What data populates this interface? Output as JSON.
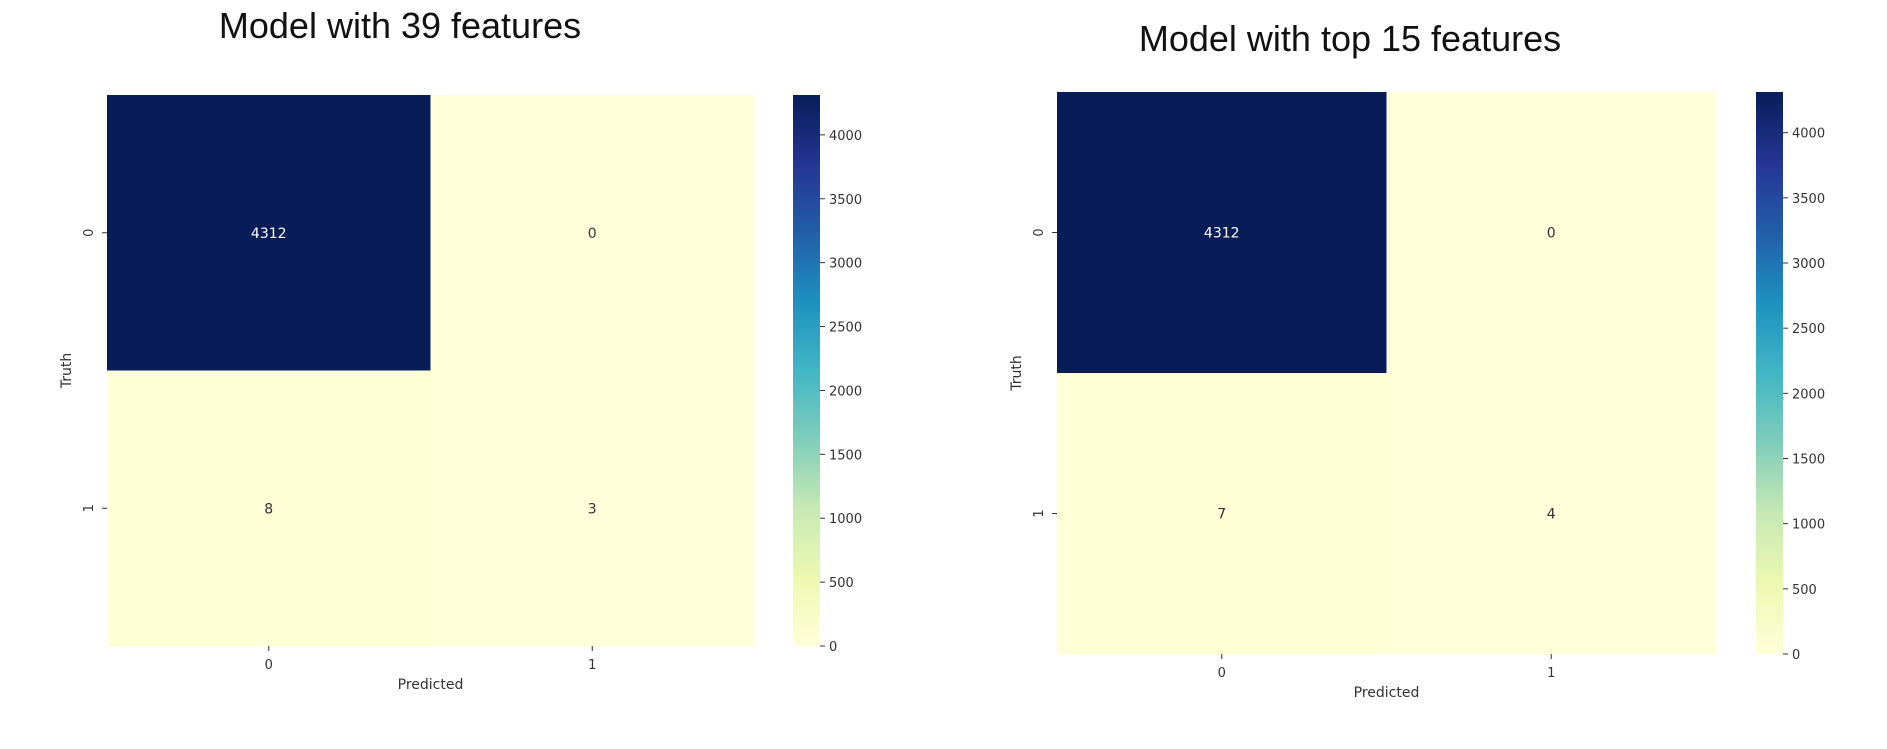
{
  "chart_data": [
    {
      "type": "heatmap",
      "title": "Model with 39 features",
      "xlabel": "Predicted",
      "ylabel": "Truth",
      "x_categories": [
        "0",
        "1"
      ],
      "y_categories": [
        "0",
        "1"
      ],
      "values": [
        [
          4312,
          0
        ],
        [
          8,
          3
        ]
      ],
      "colormap": "YlGnBu",
      "colorbar": {
        "min": 0,
        "max": 4312,
        "ticks": [
          0,
          500,
          1000,
          1500,
          2000,
          2500,
          3000,
          3500,
          4000
        ]
      }
    },
    {
      "type": "heatmap",
      "title": "Model with top 15 features",
      "xlabel": "Predicted",
      "ylabel": "Truth",
      "x_categories": [
        "0",
        "1"
      ],
      "y_categories": [
        "0",
        "1"
      ],
      "values": [
        [
          4312,
          0
        ],
        [
          7,
          4
        ]
      ],
      "colormap": "YlGnBu",
      "colorbar": {
        "min": 0,
        "max": 4312,
        "ticks": [
          0,
          500,
          1000,
          1500,
          2000,
          2500,
          3000,
          3500,
          4000
        ]
      }
    }
  ],
  "colors": {
    "colormap_stops": [
      "#ffffd9",
      "#edf8b1",
      "#c7e9b4",
      "#7fcdbb",
      "#41b6c4",
      "#1d91c0",
      "#225ea8",
      "#253494",
      "#081d58"
    ],
    "light_text": "#ffffff",
    "dark_text": "#333333"
  }
}
